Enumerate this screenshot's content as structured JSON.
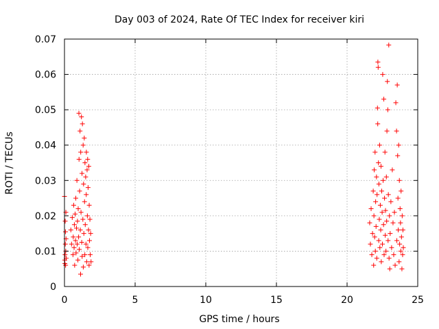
{
  "chart_data": {
    "type": "scatter",
    "title": "Day 003 of 2024, Rate Of TEC Index for receiver kiri",
    "xlabel": "GPS time / hours",
    "ylabel": "ROTI / TECUs",
    "xlim": [
      0,
      25
    ],
    "ylim": [
      0,
      0.07
    ],
    "xticks": [
      {
        "value": 0,
        "label": "0"
      },
      {
        "value": 5,
        "label": "5"
      },
      {
        "value": 10,
        "label": "10"
      },
      {
        "value": 15,
        "label": "15"
      },
      {
        "value": 20,
        "label": "20"
      },
      {
        "value": 25,
        "label": "25"
      }
    ],
    "yticks": [
      {
        "value": 0,
        "label": "0"
      },
      {
        "value": 0.01,
        "label": "0.01"
      },
      {
        "value": 0.02,
        "label": "0.02"
      },
      {
        "value": 0.03,
        "label": "0.03"
      },
      {
        "value": 0.04,
        "label": "0.04"
      },
      {
        "value": 0.05,
        "label": "0.05"
      },
      {
        "value": 0.06,
        "label": "0.06"
      },
      {
        "value": 0.07,
        "label": "0.07"
      }
    ],
    "grid": true,
    "marker": "+",
    "color": "#ff0000",
    "series": [
      {
        "points": [
          [
            0.0,
            0.0255
          ],
          [
            0.02,
            0.0075
          ],
          [
            0.03,
            0.0065
          ],
          [
            0.04,
            0.009
          ],
          [
            0.05,
            0.0185
          ],
          [
            0.06,
            0.012
          ],
          [
            0.07,
            0.0155
          ],
          [
            0.08,
            0.006
          ],
          [
            0.09,
            0.01
          ],
          [
            0.1,
            0.021
          ],
          [
            0.11,
            0.0135
          ],
          [
            0.12,
            0.008
          ],
          [
            0.45,
            0.016
          ],
          [
            0.5,
            0.012
          ],
          [
            0.55,
            0.0195
          ],
          [
            0.6,
            0.009
          ],
          [
            0.62,
            0.014
          ],
          [
            0.65,
            0.023
          ],
          [
            0.68,
            0.011
          ],
          [
            0.7,
            0.0175
          ],
          [
            0.72,
            0.006
          ],
          [
            0.75,
            0.0205
          ],
          [
            0.78,
            0.013
          ],
          [
            0.8,
            0.025
          ],
          [
            0.82,
            0.0095
          ],
          [
            0.85,
            0.0165
          ],
          [
            0.88,
            0.03
          ],
          [
            0.9,
            0.012
          ],
          [
            0.92,
            0.0185
          ],
          [
            0.95,
            0.0075
          ],
          [
            0.97,
            0.022
          ],
          [
            1.0,
            0.014
          ],
          [
            1.02,
            0.049
          ],
          [
            1.03,
            0.036
          ],
          [
            1.05,
            0.0105
          ],
          [
            1.07,
            0.027
          ],
          [
            1.1,
            0.044
          ],
          [
            1.12,
            0.016
          ],
          [
            1.14,
            0.0035
          ],
          [
            1.15,
            0.038
          ],
          [
            1.17,
            0.021
          ],
          [
            1.2,
            0.048
          ],
          [
            1.22,
            0.0125
          ],
          [
            1.24,
            0.032
          ],
          [
            1.25,
            0.0085
          ],
          [
            1.27,
            0.046
          ],
          [
            1.3,
            0.019
          ],
          [
            1.32,
            0.04
          ],
          [
            1.33,
            0.0055
          ],
          [
            1.35,
            0.029
          ],
          [
            1.37,
            0.015
          ],
          [
            1.4,
            0.042
          ],
          [
            1.42,
            0.024
          ],
          [
            1.44,
            0.009
          ],
          [
            1.45,
            0.035
          ],
          [
            1.47,
            0.0175
          ],
          [
            1.5,
            0.031
          ],
          [
            1.52,
            0.012
          ],
          [
            1.54,
            0.026
          ],
          [
            1.55,
            0.038
          ],
          [
            1.57,
            0.007
          ],
          [
            1.6,
            0.033
          ],
          [
            1.62,
            0.02
          ],
          [
            1.64,
            0.036
          ],
          [
            1.65,
            0.011
          ],
          [
            1.67,
            0.028
          ],
          [
            1.7,
            0.016
          ],
          [
            1.72,
            0.034
          ],
          [
            1.74,
            0.006
          ],
          [
            1.75,
            0.023
          ],
          [
            1.77,
            0.013
          ],
          [
            1.8,
            0.019
          ],
          [
            1.82,
            0.009
          ],
          [
            1.85,
            0.015
          ],
          [
            1.88,
            0.007
          ],
          [
            21.6,
            0.018
          ],
          [
            21.65,
            0.012
          ],
          [
            21.7,
            0.022
          ],
          [
            21.75,
            0.009
          ],
          [
            21.8,
            0.015
          ],
          [
            21.85,
            0.027
          ],
          [
            21.88,
            0.006
          ],
          [
            21.9,
            0.02
          ],
          [
            21.92,
            0.033
          ],
          [
            21.95,
            0.014
          ],
          [
            21.98,
            0.038
          ],
          [
            22.0,
            0.01
          ],
          [
            22.02,
            0.024
          ],
          [
            22.05,
            0.017
          ],
          [
            22.08,
            0.031
          ],
          [
            22.1,
            0.008
          ],
          [
            22.12,
            0.026
          ],
          [
            22.15,
            0.0505
          ],
          [
            22.17,
            0.046
          ],
          [
            22.18,
            0.0635
          ],
          [
            22.2,
            0.062
          ],
          [
            22.22,
            0.035
          ],
          [
            22.24,
            0.013
          ],
          [
            22.25,
            0.029
          ],
          [
            22.28,
            0.019
          ],
          [
            22.3,
            0.04
          ],
          [
            22.32,
            0.011
          ],
          [
            22.35,
            0.023
          ],
          [
            22.38,
            0.016
          ],
          [
            22.4,
            0.034
          ],
          [
            22.42,
            0.007
          ],
          [
            22.45,
            0.027
          ],
          [
            22.48,
            0.021
          ],
          [
            22.5,
            0.012
          ],
          [
            22.52,
            0.06
          ],
          [
            22.55,
            0.03
          ],
          [
            22.58,
            0.0175
          ],
          [
            22.6,
            0.053
          ],
          [
            22.62,
            0.009
          ],
          [
            22.65,
            0.025
          ],
          [
            22.68,
            0.038
          ],
          [
            22.7,
            0.0145
          ],
          [
            22.72,
            0.0215
          ],
          [
            22.75,
            0.01
          ],
          [
            22.78,
            0.031
          ],
          [
            22.8,
            0.0185
          ],
          [
            22.82,
            0.044
          ],
          [
            22.85,
            0.058
          ],
          [
            22.88,
            0.05
          ],
          [
            22.9,
            0.013
          ],
          [
            22.92,
            0.026
          ],
          [
            22.95,
            0.0683
          ],
          [
            22.97,
            0.008
          ],
          [
            23.0,
            0.02
          ],
          [
            23.02,
            0.005
          ],
          [
            23.05,
            0.015
          ],
          [
            23.1,
            0.024
          ],
          [
            23.15,
            0.011
          ],
          [
            23.2,
            0.033
          ],
          [
            23.25,
            0.018
          ],
          [
            23.3,
            0.009
          ],
          [
            23.35,
            0.021
          ],
          [
            23.4,
            0.006
          ],
          [
            23.45,
            0.052
          ],
          [
            23.5,
            0.044
          ],
          [
            23.52,
            0.013
          ],
          [
            23.55,
            0.057
          ],
          [
            23.58,
            0.037
          ],
          [
            23.6,
            0.025
          ],
          [
            23.62,
            0.016
          ],
          [
            23.65,
            0.04
          ],
          [
            23.68,
            0.007
          ],
          [
            23.7,
            0.03
          ],
          [
            23.72,
            0.012
          ],
          [
            23.75,
            0.022
          ],
          [
            23.78,
            0.018
          ],
          [
            23.8,
            0.01
          ],
          [
            23.82,
            0.027
          ],
          [
            23.85,
            0.014
          ],
          [
            23.88,
            0.005
          ],
          [
            23.9,
            0.02
          ],
          [
            23.93,
            0.009
          ],
          [
            23.95,
            0.016
          ],
          [
            23.98,
            0.011
          ]
        ]
      }
    ]
  }
}
